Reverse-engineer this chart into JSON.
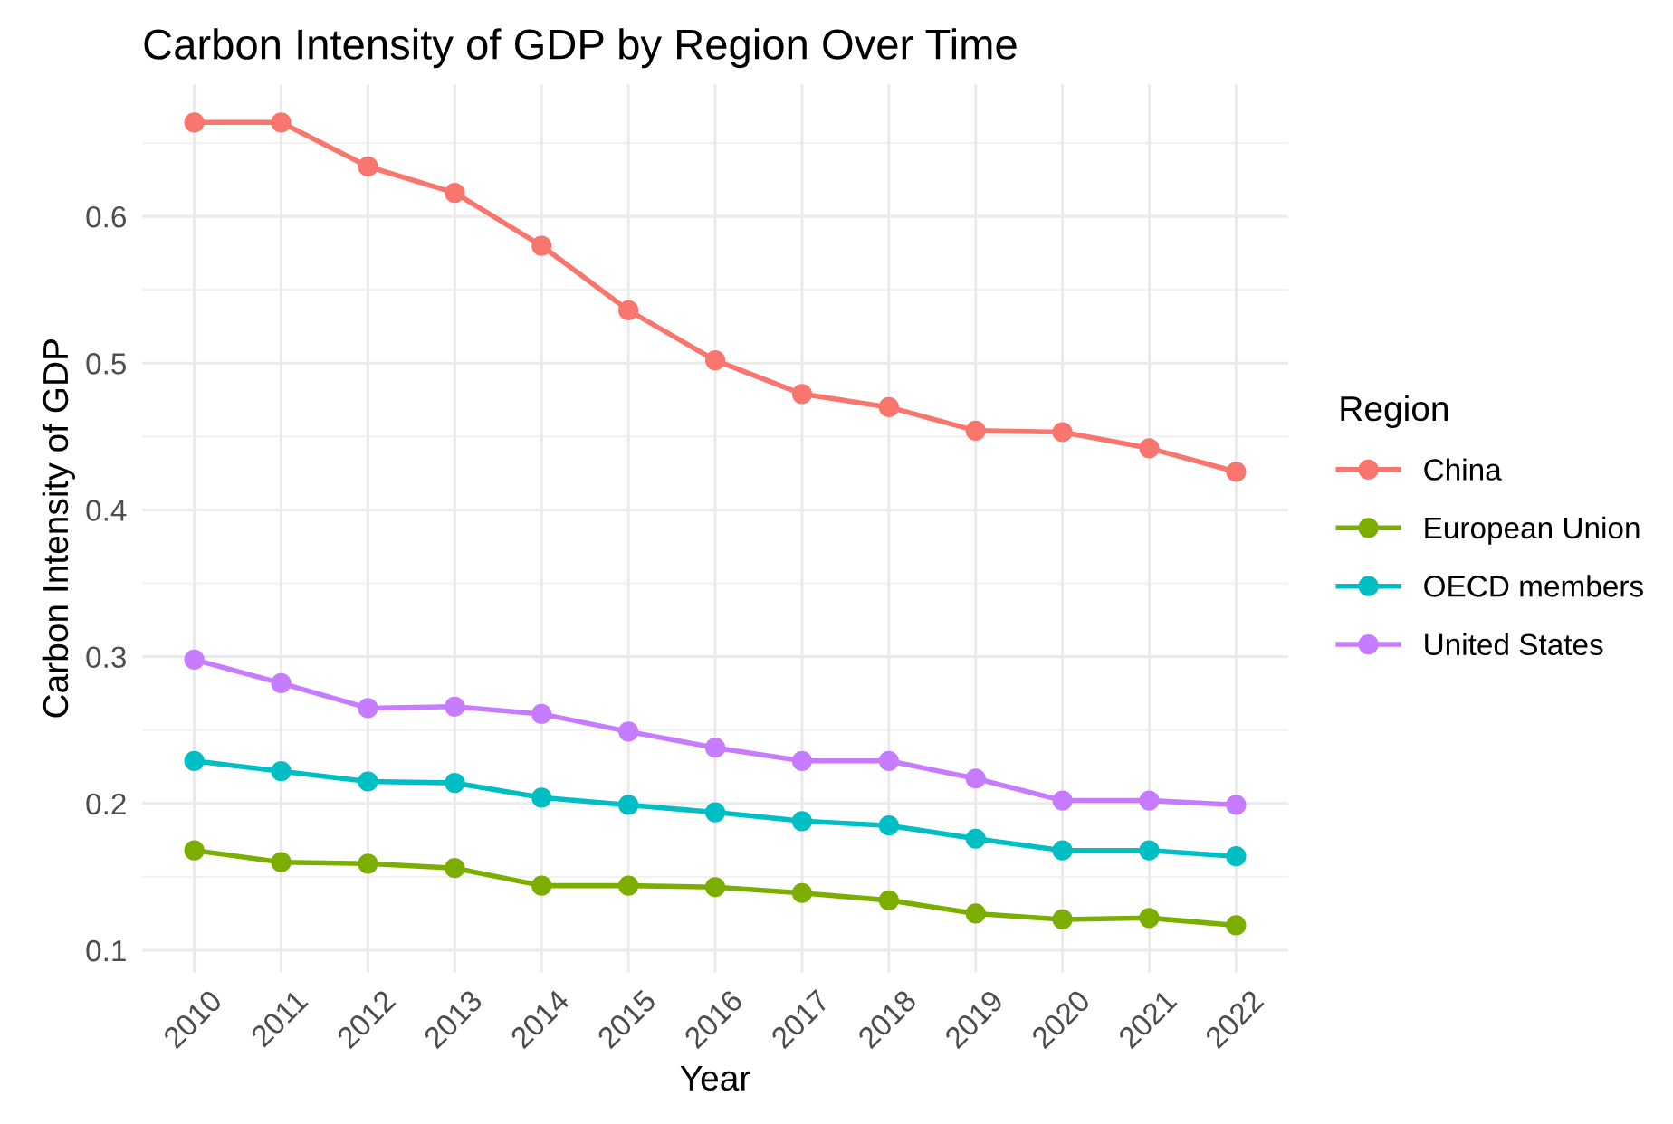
{
  "chart_data": {
    "type": "line",
    "title": "Carbon Intensity of GDP by Region Over Time",
    "xlabel": "Year",
    "ylabel": "Carbon Intensity of GDP",
    "legend_title": "Region",
    "categories": [
      "2010",
      "2011",
      "2012",
      "2013",
      "2014",
      "2015",
      "2016",
      "2017",
      "2018",
      "2019",
      "2020",
      "2021",
      "2022"
    ],
    "series": [
      {
        "name": "China",
        "color": "#f8766d",
        "values": [
          0.664,
          0.664,
          0.634,
          0.616,
          0.58,
          0.536,
          0.502,
          0.479,
          0.47,
          0.454,
          0.453,
          0.442,
          0.426
        ]
      },
      {
        "name": "European Union",
        "color": "#7cae00",
        "values": [
          0.168,
          0.16,
          0.159,
          0.156,
          0.144,
          0.144,
          0.143,
          0.139,
          0.134,
          0.125,
          0.121,
          0.122,
          0.117
        ]
      },
      {
        "name": "OECD members",
        "color": "#00bfc4",
        "values": [
          0.229,
          0.222,
          0.215,
          0.214,
          0.204,
          0.199,
          0.194,
          0.188,
          0.185,
          0.176,
          0.168,
          0.168,
          0.164
        ]
      },
      {
        "name": "United States",
        "color": "#c77cff",
        "values": [
          0.298,
          0.282,
          0.265,
          0.266,
          0.261,
          0.249,
          0.238,
          0.229,
          0.229,
          0.217,
          0.202,
          0.202,
          0.199
        ]
      }
    ],
    "ylim": [
      0.085,
      0.69
    ],
    "yticks": [
      0.1,
      0.2,
      0.3,
      0.4,
      0.5,
      0.6
    ],
    "grid": true,
    "legend": "right",
    "marker": "circle",
    "line_style": "solid"
  }
}
